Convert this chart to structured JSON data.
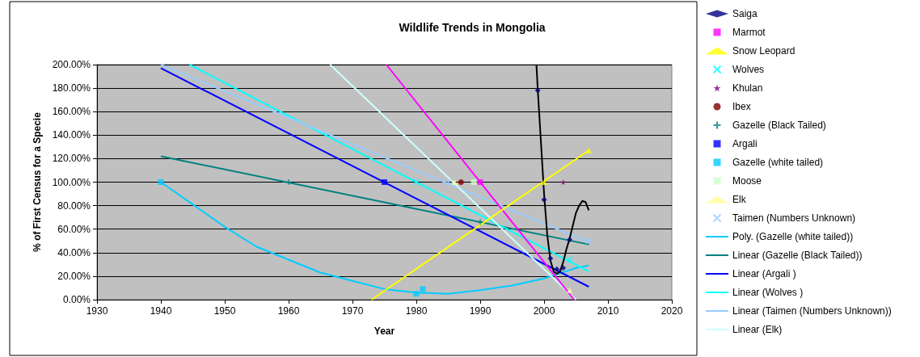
{
  "chart_data": {
    "type": "scatter",
    "title": "Wildlife Trends in Mongolia",
    "xlabel": "Year",
    "ylabel": "% of First Census for a Specie",
    "xlim": [
      1930,
      2020
    ],
    "xticks": [
      1930,
      1940,
      1950,
      1960,
      1970,
      1980,
      1990,
      2000,
      2010,
      2020
    ],
    "ylim": [
      0,
      200
    ],
    "yticks": [
      {
        "value": 0,
        "label": "0.00%"
      },
      {
        "value": 20,
        "label": "20.00%"
      },
      {
        "value": 40,
        "label": "40.00%"
      },
      {
        "value": 60,
        "label": "60.00%"
      },
      {
        "value": 80,
        "label": "80.00%"
      },
      {
        "value": 100,
        "label": "100.00%"
      },
      {
        "value": 120,
        "label": "120.00%"
      },
      {
        "value": 140,
        "label": "140.00%"
      },
      {
        "value": 160,
        "label": "160.00%"
      },
      {
        "value": 180,
        "label": "180.00%"
      },
      {
        "value": 200,
        "label": "200.00%"
      }
    ],
    "grid": "y",
    "legend": "right",
    "series": [
      {
        "name": "Saiga",
        "marker": "diamond",
        "color": "#000080",
        "x": [
          1999,
          2000,
          2001,
          2002,
          2003,
          2004
        ],
        "values": [
          178,
          85,
          35,
          26,
          27,
          51
        ]
      },
      {
        "name": "Marmot",
        "marker": "square",
        "color": "#ff00ff",
        "x": [
          1990
        ],
        "values": [
          100
        ]
      },
      {
        "name": "Snow Leopard",
        "marker": "triangle",
        "color": "#ffff00",
        "x": [
          2000,
          2007
        ],
        "values": [
          100,
          127
        ]
      },
      {
        "name": "Wolves",
        "marker": "cross",
        "color": "#00ffff",
        "x": [
          1980,
          2004
        ],
        "values": [
          100,
          34
        ]
      },
      {
        "name": "Khulan",
        "marker": "star",
        "color": "#800080",
        "x": [
          2003
        ],
        "values": [
          100
        ]
      },
      {
        "name": "Ibex",
        "marker": "circle",
        "color": "#800000",
        "x": [
          1987
        ],
        "values": [
          100
        ]
      },
      {
        "name": "Gazelle (Black Tailed)",
        "marker": "plus",
        "color": "#008080",
        "x": [
          1960,
          1990
        ],
        "values": [
          100,
          66
        ]
      },
      {
        "name": "Argali",
        "marker": "square",
        "color": "#0000ff",
        "x": [
          1975
        ],
        "values": [
          100
        ]
      },
      {
        "name": "Gazelle (white tailed)",
        "marker": "square",
        "color": "#00ccff",
        "x": [
          1940,
          1980,
          1981
        ],
        "values": [
          100,
          5,
          9
        ]
      },
      {
        "name": "Moose",
        "marker": "square",
        "color": "#ccffcc",
        "x": [
          1989
        ],
        "values": [
          100
        ]
      },
      {
        "name": "Elk",
        "marker": "triangle",
        "color": "#ffff99",
        "x": [
          1986,
          2004
        ],
        "values": [
          100,
          8
        ]
      },
      {
        "name": "Taimen (Numbers Unknown)",
        "marker": "cross",
        "color": "#99ccff",
        "x": [
          1985,
          2007
        ],
        "values": [
          100,
          50
        ]
      },
      {
        "name": "Poly. (Gazelle (white tailed))",
        "type": "line",
        "marker": "none",
        "color": "#00ccff",
        "x": [
          1940,
          1945,
          1950,
          1955,
          1960,
          1965,
          1970,
          1975,
          1980,
          1985,
          1990,
          1995,
          2000,
          2005,
          2007
        ],
        "values": [
          100,
          81,
          62,
          45,
          34,
          23,
          16,
          9,
          6,
          5,
          8,
          12,
          18,
          27,
          29
        ]
      },
      {
        "name": "Linear (Gazelle (Black Tailed))",
        "type": "line",
        "marker": "none",
        "color": "#008080",
        "x": [
          1940,
          2007
        ],
        "values": [
          122,
          47
        ]
      },
      {
        "name": "Linear (Argali )",
        "type": "line",
        "marker": "none",
        "color": "#0000ff",
        "x": [
          1940,
          2007
        ],
        "values": [
          197,
          11
        ]
      },
      {
        "name": "Linear (Wolves )",
        "type": "line",
        "marker": "none",
        "color": "#00ffff",
        "x": [
          1944.5,
          2007
        ],
        "values": [
          200,
          24
        ]
      },
      {
        "name": "Linear (Taimen (Numbers Unknown))",
        "type": "line",
        "marker": "none",
        "color": "#99ccff",
        "x": [
          1940,
          2007
        ],
        "values": [
          200,
          49
        ]
      },
      {
        "name": "Linear (Elk)",
        "type": "line",
        "marker": "none",
        "color": "#ccffff",
        "x": [
          1966.5,
          2005
        ],
        "values": [
          200,
          0
        ]
      },
      {
        "type": "line",
        "marker": "none",
        "color": "#ff00ff",
        "x": [
          1975.3,
          2004.7
        ],
        "values": [
          200,
          0
        ]
      },
      {
        "type": "line",
        "marker": "none",
        "color": "#ffff00",
        "x": [
          1973,
          2007
        ],
        "values": [
          0,
          127
        ]
      },
      {
        "type": "line",
        "marker": "none",
        "color": "#000000",
        "x": [
          1998.8,
          1999,
          1999.5,
          2000,
          2000.5,
          2001,
          2001.5,
          2002,
          2002.5,
          2003,
          2003.5,
          2004,
          2004.5,
          2005,
          2005.5,
          2006,
          2006.5,
          2007
        ],
        "values": [
          200,
          180,
          135,
          90,
          55,
          33,
          24,
          22,
          24,
          32,
          43,
          52,
          63,
          74,
          80,
          84,
          83,
          76
        ]
      }
    ]
  }
}
